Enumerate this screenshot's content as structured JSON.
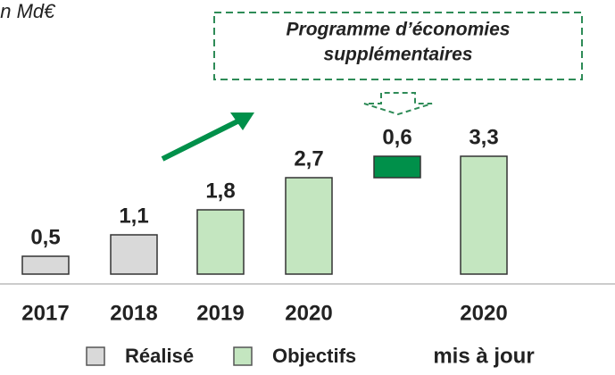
{
  "chart_data": {
    "type": "bar",
    "subtitle": "en Md€",
    "annotation": "Programme d’économies supplémentaires",
    "categories": [
      "2017",
      "2018",
      "2019",
      "2020",
      null,
      "2020"
    ],
    "category_note": "mis à jour",
    "series": [
      {
        "name": "Réalisé",
        "color": "#d9d9d9",
        "values": [
          0.5,
          1.1,
          null,
          null,
          null,
          null
        ],
        "value_labels": [
          "0,5",
          "1,1",
          null,
          null,
          null,
          null
        ]
      },
      {
        "name": "Objectifs",
        "color": "#c4e6c0",
        "values": [
          null,
          null,
          1.8,
          2.7,
          null,
          3.3
        ],
        "value_labels": [
          null,
          null,
          "1,8",
          "2,7",
          null,
          "3,3"
        ]
      },
      {
        "color": "#00904a",
        "values": [
          null,
          null,
          null,
          null,
          0.6,
          null
        ],
        "value_labels": [
          null,
          null,
          null,
          null,
          "0,6",
          null
        ]
      }
    ]
  }
}
